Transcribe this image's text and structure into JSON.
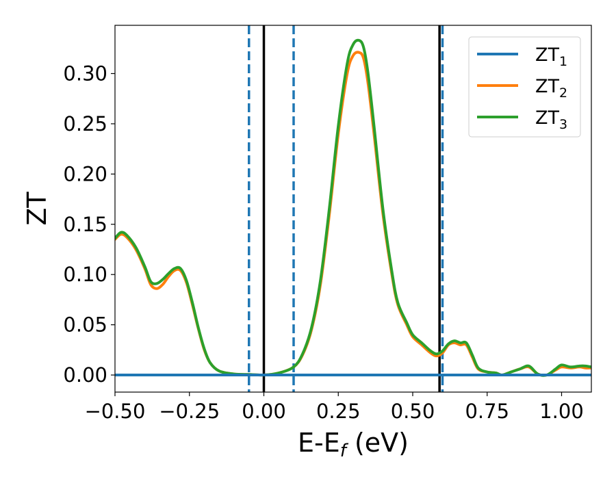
{
  "chart_data": {
    "type": "line",
    "xlabel": {
      "main": "E-E",
      "sub": "f",
      "suffix": " (eV)"
    },
    "ylabel": "ZT",
    "xlim": [
      -0.5,
      1.1
    ],
    "ylim": [
      -0.017,
      0.348
    ],
    "x_ticks": [
      -0.5,
      -0.25,
      0.0,
      0.25,
      0.5,
      0.75,
      1.0
    ],
    "x_tick_labels": [
      "−0.50",
      "−0.25",
      "0.00",
      "0.25",
      "0.50",
      "0.75",
      "1.00"
    ],
    "y_ticks": [
      0.0,
      0.05,
      0.1,
      0.15,
      0.2,
      0.25,
      0.3
    ],
    "y_tick_labels": [
      "0.00",
      "0.05",
      "0.10",
      "0.15",
      "0.20",
      "0.25",
      "0.30"
    ],
    "legend_position": "top-right",
    "grid": false,
    "vertical_lines": [
      {
        "x": -0.05,
        "style": "dashed",
        "color": "#1f77b4"
      },
      {
        "x": 0.0,
        "style": "solid",
        "color": "#000000"
      },
      {
        "x": 0.1,
        "style": "dashed",
        "color": "#1f77b4"
      },
      {
        "x": 0.59,
        "style": "solid",
        "color": "#000000"
      },
      {
        "x": 0.6,
        "style": "dashed",
        "color": "#1f77b4"
      }
    ],
    "series": [
      {
        "name": "ZT",
        "sub": "1",
        "color": "#1f77b4",
        "x": [
          -0.5,
          -0.25,
          0.0,
          0.25,
          0.5,
          0.75,
          1.0,
          1.1
        ],
        "y": [
          0.0,
          0.0,
          0.0,
          0.0,
          0.0,
          0.0,
          0.0,
          0.0
        ]
      },
      {
        "name": "ZT",
        "sub": "2",
        "color": "#ff7f0e",
        "x": [
          -0.5,
          -0.48,
          -0.46,
          -0.43,
          -0.4,
          -0.38,
          -0.36,
          -0.34,
          -0.32,
          -0.3,
          -0.28,
          -0.26,
          -0.24,
          -0.22,
          -0.2,
          -0.18,
          -0.15,
          -0.1,
          -0.05,
          0.0,
          0.05,
          0.1,
          0.13,
          0.16,
          0.19,
          0.22,
          0.25,
          0.28,
          0.3,
          0.32,
          0.335,
          0.35,
          0.37,
          0.4,
          0.43,
          0.45,
          0.48,
          0.5,
          0.53,
          0.56,
          0.58,
          0.6,
          0.62,
          0.64,
          0.66,
          0.68,
          0.7,
          0.72,
          0.75,
          0.78,
          0.8,
          0.83,
          0.86,
          0.89,
          0.92,
          0.95,
          0.98,
          1.0,
          1.03,
          1.06,
          1.08,
          1.1
        ],
        "y": [
          0.135,
          0.14,
          0.137,
          0.125,
          0.106,
          0.09,
          0.086,
          0.09,
          0.098,
          0.104,
          0.104,
          0.092,
          0.07,
          0.046,
          0.025,
          0.012,
          0.004,
          0.001,
          0.0005,
          0.0,
          0.002,
          0.008,
          0.02,
          0.045,
          0.09,
          0.16,
          0.24,
          0.3,
          0.318,
          0.321,
          0.315,
          0.29,
          0.24,
          0.16,
          0.1,
          0.07,
          0.05,
          0.038,
          0.03,
          0.022,
          0.019,
          0.022,
          0.03,
          0.032,
          0.03,
          0.03,
          0.018,
          0.006,
          0.003,
          0.002,
          0.0,
          0.003,
          0.006,
          0.008,
          0.001,
          0.0,
          0.005,
          0.008,
          0.007,
          0.008,
          0.007,
          0.007
        ]
      },
      {
        "name": "ZT",
        "sub": "3",
        "color": "#2ca02c",
        "x": [
          -0.5,
          -0.48,
          -0.46,
          -0.43,
          -0.4,
          -0.38,
          -0.36,
          -0.34,
          -0.32,
          -0.3,
          -0.28,
          -0.26,
          -0.24,
          -0.22,
          -0.2,
          -0.18,
          -0.15,
          -0.1,
          -0.05,
          0.0,
          0.05,
          0.1,
          0.13,
          0.16,
          0.19,
          0.22,
          0.25,
          0.28,
          0.3,
          0.32,
          0.335,
          0.35,
          0.37,
          0.4,
          0.43,
          0.45,
          0.48,
          0.5,
          0.53,
          0.56,
          0.58,
          0.6,
          0.62,
          0.64,
          0.66,
          0.68,
          0.7,
          0.72,
          0.75,
          0.78,
          0.8,
          0.83,
          0.86,
          0.89,
          0.92,
          0.95,
          0.98,
          1.0,
          1.03,
          1.06,
          1.08,
          1.1
        ],
        "y": [
          0.136,
          0.142,
          0.139,
          0.127,
          0.108,
          0.093,
          0.091,
          0.095,
          0.101,
          0.106,
          0.106,
          0.094,
          0.072,
          0.047,
          0.026,
          0.012,
          0.004,
          0.001,
          0.0005,
          0.0,
          0.002,
          0.008,
          0.021,
          0.047,
          0.094,
          0.166,
          0.248,
          0.31,
          0.329,
          0.333,
          0.326,
          0.3,
          0.248,
          0.165,
          0.103,
          0.072,
          0.052,
          0.04,
          0.032,
          0.024,
          0.021,
          0.024,
          0.031,
          0.034,
          0.032,
          0.032,
          0.02,
          0.007,
          0.003,
          0.002,
          0.0,
          0.003,
          0.006,
          0.009,
          0.001,
          0.0,
          0.006,
          0.01,
          0.008,
          0.009,
          0.009,
          0.008
        ]
      }
    ]
  }
}
